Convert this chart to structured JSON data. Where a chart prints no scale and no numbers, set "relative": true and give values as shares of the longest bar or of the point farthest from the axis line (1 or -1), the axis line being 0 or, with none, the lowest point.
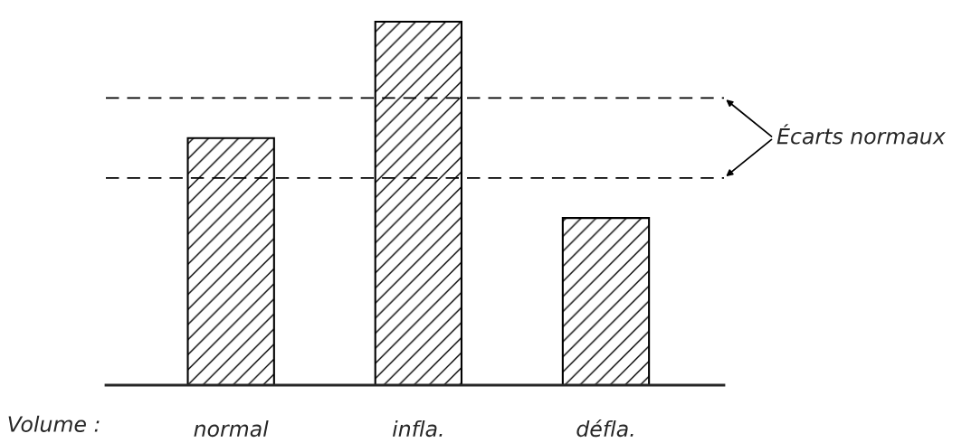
{
  "chart_data": {
    "type": "bar",
    "relative": true,
    "xlabel": "Volume :",
    "categories": [
      "normal",
      "infla.",
      "défla."
    ],
    "values": [
      0.68,
      1,
      0.46
    ],
    "color": "#000000",
    "ref_lines": [
      {
        "axis": "y",
        "value": 0.79,
        "line_style": "dashed",
        "color": "#000000"
      },
      {
        "axis": "y",
        "value": 0.57,
        "line_style": "dashed",
        "color": "#000000"
      }
    ],
    "annotations": [
      "Écarts normaux"
    ],
    "grid": false,
    "legend": false
  }
}
